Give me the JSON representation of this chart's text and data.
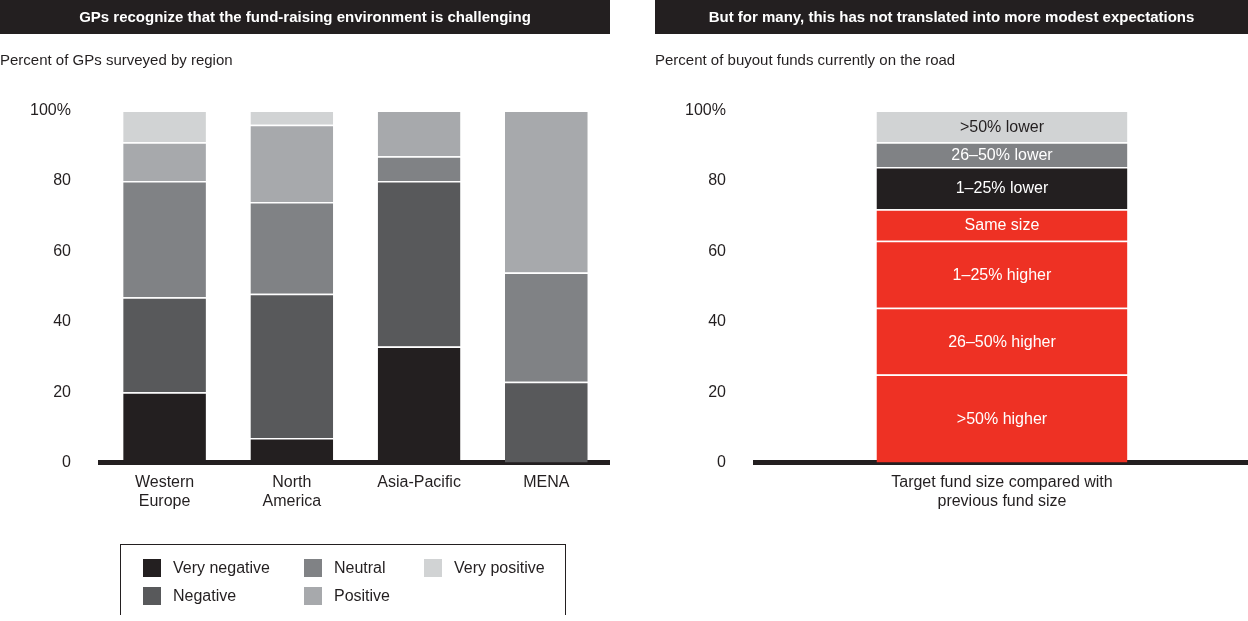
{
  "chart_data": [
    {
      "type": "bar",
      "title": "GPs recognize that the fund-raising environment is challenging",
      "subtitle": "Percent of GPs surveyed by region",
      "categories": [
        "Western Europe",
        "North America",
        "Asia-Pacific",
        "MENA"
      ],
      "stacked": true,
      "legend": "bottom",
      "ylim": [
        0,
        100
      ],
      "yticks": [
        0,
        20,
        40,
        60,
        80,
        {
          "value": 100,
          "label": "100%"
        }
      ],
      "series": [
        {
          "name": "Very negative",
          "color": "#231f20",
          "values": [
            20,
            7,
            33,
            0
          ]
        },
        {
          "name": "Negative",
          "color": "#58595b",
          "values": [
            27,
            41,
            47,
            23
          ]
        },
        {
          "name": "Neutral",
          "color": "#808285",
          "values": [
            33,
            26,
            7,
            31
          ]
        },
        {
          "name": "Positive",
          "color": "#a7a9ac",
          "values": [
            11,
            22,
            13,
            46
          ]
        },
        {
          "name": "Very positive",
          "color": "#d1d3d4",
          "values": [
            9,
            4,
            0,
            0
          ]
        }
      ]
    },
    {
      "type": "bar",
      "title": "But for many, this has not translated into more modest expectations",
      "subtitle": "Percent of buyout funds currently on the road",
      "categories": [
        "Target fund size compared with previous fund size"
      ],
      "stacked": true,
      "ylim": [
        0,
        100
      ],
      "yticks": [
        0,
        20,
        40,
        60,
        80,
        {
          "value": 100,
          "label": "100%"
        }
      ],
      "series": [
        {
          "name": ">50% higher",
          "color": "#ee3124",
          "values": [
            25
          ]
        },
        {
          "name": "26–50% higher",
          "color": "#ee3124",
          "values": [
            19
          ]
        },
        {
          "name": "1–25% higher",
          "color": "#ee3124",
          "values": [
            19
          ]
        },
        {
          "name": "Same size",
          "color": "#ee3124",
          "values": [
            9
          ]
        },
        {
          "name": "1–25% lower",
          "color": "#231f20",
          "values": [
            12
          ]
        },
        {
          "name": "26–50% lower",
          "color": "#808285",
          "values": [
            7
          ]
        },
        {
          "name": ">50% lower",
          "color": "#d1d3d4",
          "values": [
            9
          ]
        }
      ]
    }
  ]
}
